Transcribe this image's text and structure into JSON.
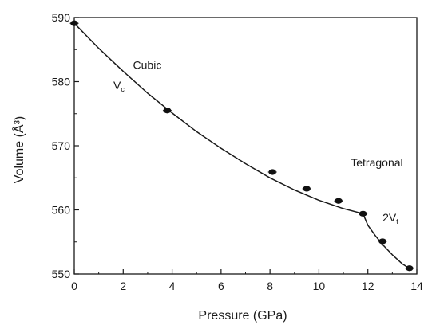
{
  "chart_data": {
    "type": "scatter",
    "title": "",
    "xlabel": "Pressure (GPa)",
    "ylabel": "Volume (Å³)",
    "xlim": [
      0,
      14
    ],
    "ylim": [
      550,
      590
    ],
    "xticks": [
      "0",
      "2",
      "4",
      "6",
      "8",
      "10",
      "12",
      "14"
    ],
    "yticks": [
      "550",
      "560",
      "570",
      "580",
      "590"
    ],
    "grid": false,
    "series": [
      {
        "points": [
          {
            "x": 0.0,
            "y": 589.1
          },
          {
            "x": 3.8,
            "y": 575.5
          },
          {
            "x": 8.1,
            "y": 565.9
          },
          {
            "x": 9.5,
            "y": 563.3
          },
          {
            "x": 10.8,
            "y": 561.4
          },
          {
            "x": 11.8,
            "y": 559.4
          },
          {
            "x": 12.6,
            "y": 555.1
          },
          {
            "x": 13.7,
            "y": 550.9
          }
        ]
      }
    ],
    "fit_curve": [
      {
        "x": 0.0,
        "y": 589.1
      },
      {
        "x": 1.0,
        "y": 585.2
      },
      {
        "x": 2.0,
        "y": 581.6
      },
      {
        "x": 3.0,
        "y": 578.2
      },
      {
        "x": 4.0,
        "y": 575.1
      },
      {
        "x": 5.0,
        "y": 572.2
      },
      {
        "x": 6.0,
        "y": 569.6
      },
      {
        "x": 7.0,
        "y": 567.2
      },
      {
        "x": 8.0,
        "y": 565.0
      },
      {
        "x": 9.0,
        "y": 563.1
      },
      {
        "x": 10.0,
        "y": 561.5
      },
      {
        "x": 11.0,
        "y": 560.2
      },
      {
        "x": 11.8,
        "y": 559.4
      },
      {
        "x": 12.0,
        "y": 557.6
      },
      {
        "x": 12.3,
        "y": 556.0
      },
      {
        "x": 12.6,
        "y": 554.6
      },
      {
        "x": 13.0,
        "y": 553.0
      },
      {
        "x": 13.4,
        "y": 551.6
      },
      {
        "x": 13.8,
        "y": 550.6
      }
    ],
    "annotations": [
      {
        "id": "cubic",
        "text": "Cubic",
        "x": 2.4,
        "y": 582.0
      },
      {
        "id": "vc",
        "text": "V",
        "sub": "c",
        "x": 1.6,
        "y": 578.8
      },
      {
        "id": "tetragonal",
        "text": "Tetragonal",
        "x": 11.3,
        "y": 566.8
      },
      {
        "id": "twovt",
        "text": "2V",
        "sub": "t",
        "x": 12.6,
        "y": 558.2
      }
    ]
  }
}
